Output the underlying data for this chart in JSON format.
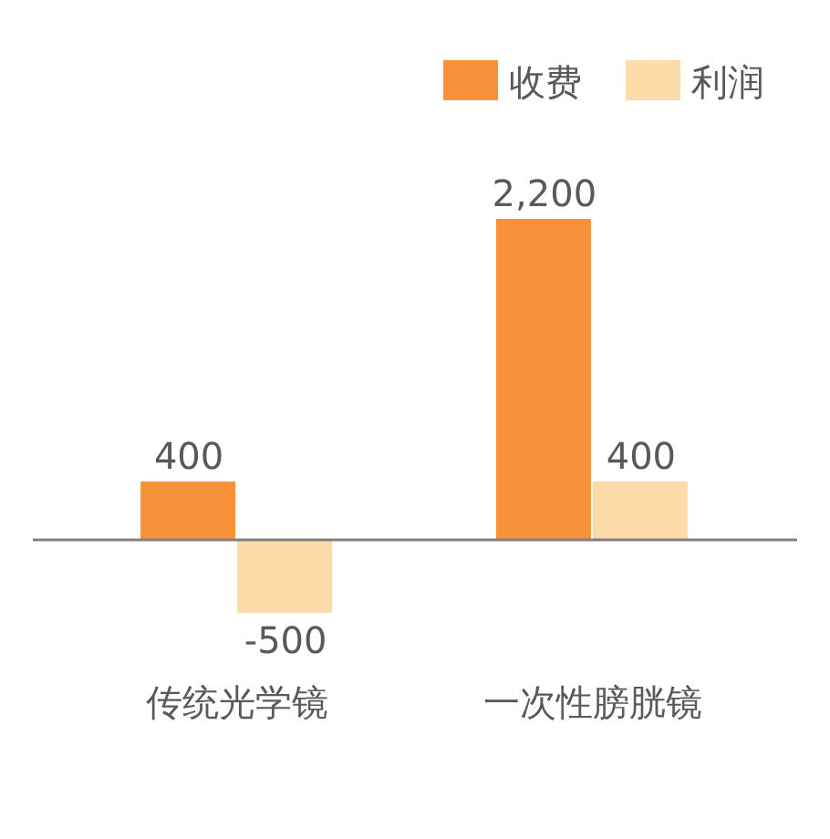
{
  "chart_data": {
    "type": "bar",
    "categories": [
      "传统光学镜",
      "一次性膀胱镜"
    ],
    "series": [
      {
        "name": "收费",
        "color": "#f7923a",
        "values": [
          400,
          2200
        ],
        "value_labels": [
          "400",
          "2,200"
        ]
      },
      {
        "name": "利润",
        "color": "#fddba8",
        "values": [
          -500,
          400
        ],
        "value_labels": [
          "-500",
          "400"
        ]
      }
    ],
    "legend": "top right"
  }
}
